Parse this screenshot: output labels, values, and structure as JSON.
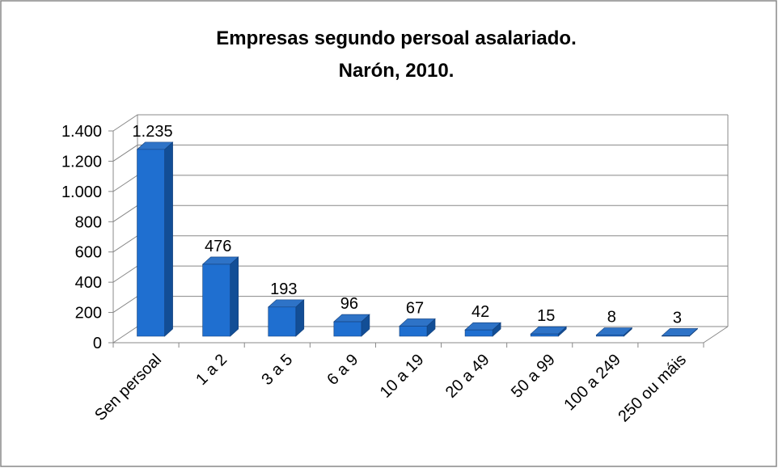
{
  "chart_data": {
    "type": "bar3d",
    "title": [
      "Empresas segundo persoal asalariado.",
      "Narón, 2010."
    ],
    "categories": [
      "Sen persoal",
      "1 a 2",
      "3 a 5",
      "6 a 9",
      "10 a 19",
      "20 a 49",
      "50 a 99",
      "100 a 249",
      "250 ou máis"
    ],
    "values": [
      1235,
      476,
      193,
      96,
      67,
      42,
      15,
      8,
      3
    ],
    "value_labels": [
      "1.235",
      "476",
      "193",
      "96",
      "67",
      "42",
      "15",
      "8",
      "3"
    ],
    "color": "#1f6fd0",
    "ylim": [
      0,
      1400
    ],
    "yticks": [
      0,
      200,
      400,
      600,
      800,
      {
        "value": 1000,
        "label": "1.000"
      },
      {
        "value": 1200,
        "label": "1.200"
      },
      {
        "value": 1400,
        "label": "1.400"
      }
    ],
    "grid": true
  }
}
